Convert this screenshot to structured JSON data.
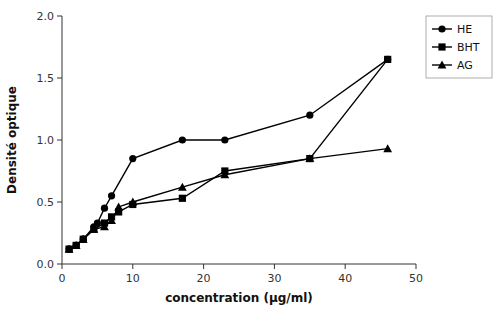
{
  "chart_data": {
    "type": "line",
    "x_label": "concentration (μg/ml)",
    "y_label": "Densité optique",
    "series": [
      {
        "name": "HE",
        "color": "#000000",
        "marker": "circle",
        "x": [
          1,
          2,
          3,
          4.5,
          5,
          6,
          7,
          10,
          17,
          23,
          35,
          46
        ],
        "values": [
          0.12,
          0.15,
          0.2,
          0.3,
          0.33,
          0.45,
          0.55,
          0.85,
          1.0,
          1.0,
          1.2,
          1.65
        ]
      },
      {
        "name": "BHT",
        "color": "#000000",
        "marker": "square",
        "x": [
          1,
          2,
          3,
          4.5,
          6,
          7,
          8,
          10,
          17,
          23,
          35,
          46
        ],
        "values": [
          0.12,
          0.15,
          0.2,
          0.28,
          0.33,
          0.38,
          0.42,
          0.48,
          0.53,
          0.75,
          0.85,
          1.65
        ]
      },
      {
        "name": "AG",
        "color": "#000000",
        "marker": "triangle",
        "x": [
          1,
          2,
          3,
          4.5,
          6,
          7,
          8,
          10,
          17,
          23,
          35,
          46
        ],
        "values": [
          0.12,
          0.15,
          0.2,
          0.28,
          0.3,
          0.35,
          0.46,
          0.5,
          0.62,
          0.72,
          0.85,
          0.93
        ]
      }
    ],
    "xlim": [
      0,
      50
    ],
    "ylim": [
      0.0,
      2.0
    ],
    "xticks": [
      0,
      10,
      20,
      30,
      40,
      50
    ],
    "yticks": [
      {
        "value": 0,
        "label": "0.0"
      },
      0.5,
      {
        "value": 1,
        "label": "1.0"
      },
      1.5,
      {
        "value": 2,
        "label": "2.0"
      }
    ],
    "grid": false,
    "legend": "upper right"
  }
}
